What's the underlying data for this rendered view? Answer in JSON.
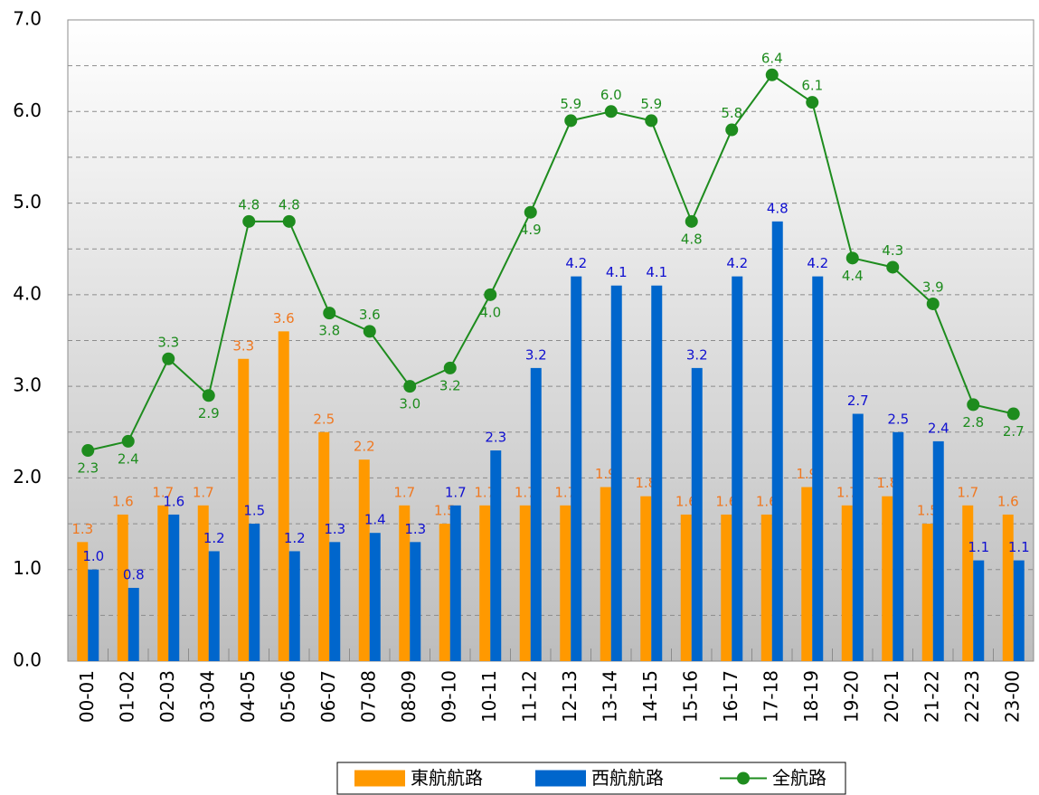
{
  "chart_data": {
    "type": "bar-line",
    "categories": [
      "00-01",
      "01-02",
      "02-03",
      "03-04",
      "04-05",
      "05-06",
      "06-07",
      "07-08",
      "08-09",
      "09-10",
      "10-11",
      "11-12",
      "12-13",
      "13-14",
      "14-15",
      "15-16",
      "16-17",
      "17-18",
      "18-19",
      "19-20",
      "20-21",
      "21-22",
      "22-23",
      "23-00"
    ],
    "series": [
      {
        "name": "東航航路",
        "color": "#FF9900",
        "kind": "bar",
        "label_color": "#F07820",
        "values": [
          1.3,
          1.6,
          1.7,
          1.7,
          3.3,
          3.6,
          2.5,
          2.2,
          1.7,
          1.5,
          1.7,
          1.7,
          1.7,
          1.9,
          1.8,
          1.6,
          1.6,
          1.6,
          1.9,
          1.7,
          1.8,
          1.5,
          1.7,
          1.6
        ],
        "value_labels": [
          "1.3",
          "1.6",
          "1.7",
          "1.7",
          "3.3",
          "3.6",
          "2.5",
          "2.2",
          "1.7",
          "1.5",
          "1.7",
          "1.7",
          "1.7",
          "1.9",
          "1.8",
          "1.6",
          "1.6",
          "1.6",
          "1.9",
          "1.7",
          "1.8",
          "1.5",
          "1.7",
          "1.6"
        ]
      },
      {
        "name": "西航航路",
        "color": "#0066CC",
        "kind": "bar",
        "label_color": "#1010D0",
        "values": [
          1.0,
          0.8,
          1.6,
          1.2,
          1.5,
          1.2,
          1.3,
          1.4,
          1.3,
          1.7,
          2.3,
          3.2,
          4.2,
          4.1,
          4.1,
          3.2,
          4.2,
          4.8,
          4.2,
          2.7,
          2.5,
          2.4,
          1.1,
          1.1
        ],
        "value_labels": [
          "1.0",
          "0.8",
          "1.6",
          "1.2",
          "1.5",
          "1.2",
          "1.3",
          "1.4",
          "1.3",
          "1.7",
          "2.3",
          "3.2",
          "4.2",
          "4.1",
          "4.1",
          "3.2",
          "4.2",
          "4.8",
          "4.2",
          "2.7",
          "2.5",
          "2.4",
          "1.1",
          "1.1"
        ]
      },
      {
        "name": "全航路",
        "color": "#1E8C1E",
        "kind": "line",
        "label_color": "#1E8C1E",
        "values": [
          2.3,
          2.4,
          3.3,
          2.9,
          4.8,
          4.8,
          3.8,
          3.6,
          3.0,
          3.2,
          4.0,
          4.9,
          5.9,
          6.0,
          5.9,
          4.8,
          5.8,
          6.4,
          6.1,
          4.4,
          4.3,
          3.9,
          2.8,
          2.7
        ],
        "value_labels": [
          "2.3",
          "2.4",
          "3.3",
          "2.9",
          "4.8",
          "4.8",
          "3.8",
          "3.6",
          "3.0",
          "3.2",
          "4.0",
          "4.9",
          "5.9",
          "6.0",
          "5.9",
          "4.8",
          "5.8",
          "6.4",
          "6.1",
          "4.4",
          "4.3",
          "3.9",
          "2.8",
          "2.7"
        ]
      }
    ],
    "ylim": [
      0,
      7
    ],
    "yticks": [
      {
        "value": 0,
        "label": "0.0"
      },
      {
        "value": 1,
        "label": "1.0"
      },
      {
        "value": 2,
        "label": "2.0"
      },
      {
        "value": 3,
        "label": "3.0"
      },
      {
        "value": 4,
        "label": "4.0"
      },
      {
        "value": 5,
        "label": "5.0"
      },
      {
        "value": 6,
        "label": "6.0"
      },
      {
        "value": 7,
        "label": "7.0"
      }
    ],
    "minor_yticks": [
      0.5,
      1.5,
      2.5,
      3.5,
      4.5,
      5.5,
      6.5
    ],
    "grid": true,
    "legend": "bottom"
  }
}
